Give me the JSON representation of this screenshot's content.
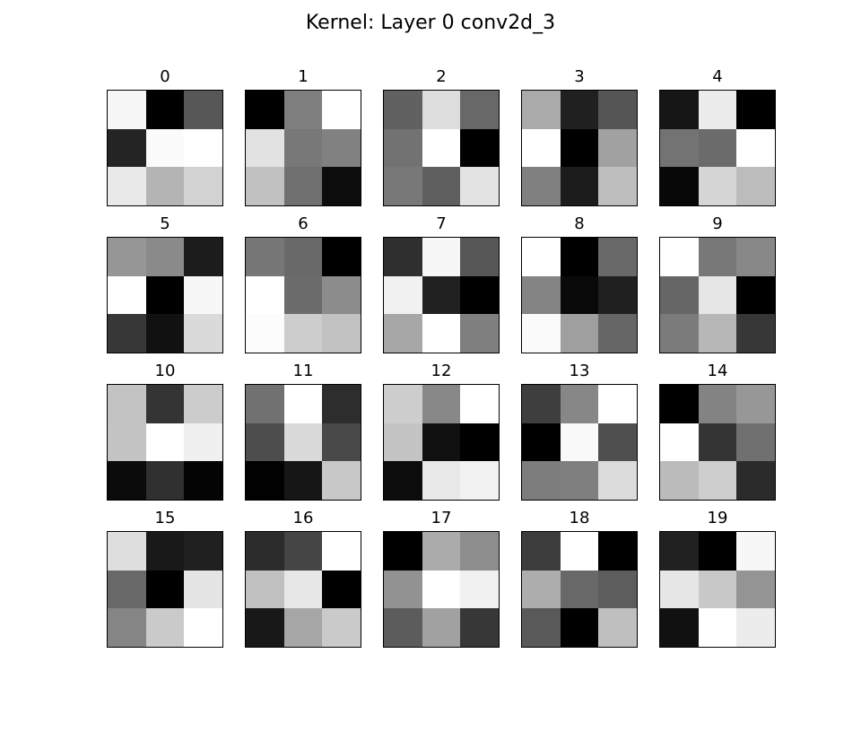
{
  "figure": {
    "title": "Kernel: Layer 0 conv2d_3"
  },
  "chart_data": {
    "type": "heatmap",
    "title": "Kernel: Layer 0 conv2d_3",
    "colormap": "gray",
    "value_range": [
      0,
      255
    ],
    "grid": false,
    "kernels": [
      {
        "label": "0",
        "values": [
          [
            246,
            0,
            87
          ],
          [
            36,
            251,
            255
          ],
          [
            233,
            180,
            210
          ]
        ]
      },
      {
        "label": "1",
        "values": [
          [
            0,
            127,
            255
          ],
          [
            226,
            120,
            129
          ],
          [
            193,
            112,
            13
          ]
        ]
      },
      {
        "label": "2",
        "values": [
          [
            97,
            221,
            104
          ],
          [
            114,
            255,
            0
          ],
          [
            120,
            95,
            227
          ]
        ]
      },
      {
        "label": "3",
        "values": [
          [
            170,
            32,
            85
          ],
          [
            255,
            0,
            161
          ],
          [
            128,
            28,
            190
          ]
        ]
      },
      {
        "label": "4",
        "values": [
          [
            22,
            236,
            0
          ],
          [
            115,
            107,
            255
          ],
          [
            8,
            214,
            188
          ]
        ]
      },
      {
        "label": "5",
        "values": [
          [
            150,
            138,
            28
          ],
          [
            255,
            0,
            247
          ],
          [
            55,
            17,
            218
          ]
        ]
      },
      {
        "label": "6",
        "values": [
          [
            119,
            105,
            0
          ],
          [
            255,
            108,
            140
          ],
          [
            252,
            205,
            194
          ]
        ]
      },
      {
        "label": "7",
        "values": [
          [
            47,
            247,
            87
          ],
          [
            241,
            33,
            0
          ],
          [
            167,
            255,
            127
          ]
        ]
      },
      {
        "label": "8",
        "values": [
          [
            255,
            0,
            105
          ],
          [
            132,
            9,
            32
          ],
          [
            251,
            159,
            102
          ]
        ]
      },
      {
        "label": "9",
        "values": [
          [
            255,
            120,
            136
          ],
          [
            102,
            230,
            0
          ],
          [
            123,
            183,
            55
          ]
        ]
      },
      {
        "label": "10",
        "values": [
          [
            195,
            52,
            204
          ],
          [
            196,
            255,
            240
          ],
          [
            11,
            48,
            4
          ]
        ]
      },
      {
        "label": "11",
        "values": [
          [
            113,
            255,
            45
          ],
          [
            77,
            218,
            73
          ],
          [
            1,
            22,
            200
          ]
        ]
      },
      {
        "label": "12",
        "values": [
          [
            205,
            136,
            255
          ],
          [
            196,
            16,
            0
          ],
          [
            12,
            233,
            242
          ]
        ]
      },
      {
        "label": "13",
        "values": [
          [
            62,
            135,
            255
          ],
          [
            0,
            249,
            79
          ],
          [
            125,
            127,
            220
          ]
        ]
      },
      {
        "label": "14",
        "values": [
          [
            0,
            131,
            151
          ],
          [
            255,
            52,
            112
          ],
          [
            187,
            206,
            43
          ]
        ]
      },
      {
        "label": "15",
        "values": [
          [
            222,
            25,
            32
          ],
          [
            104,
            0,
            228
          ],
          [
            133,
            202,
            255
          ]
        ]
      },
      {
        "label": "16",
        "values": [
          [
            44,
            69,
            255
          ],
          [
            192,
            231,
            0
          ],
          [
            24,
            166,
            202
          ]
        ]
      },
      {
        "label": "17",
        "values": [
          [
            0,
            171,
            142
          ],
          [
            146,
            255,
            241
          ],
          [
            92,
            161,
            55
          ]
        ]
      },
      {
        "label": "18",
        "values": [
          [
            60,
            255,
            0
          ],
          [
            174,
            104,
            93
          ],
          [
            89,
            0,
            191
          ]
        ]
      },
      {
        "label": "19",
        "values": [
          [
            33,
            0,
            247
          ],
          [
            230,
            200,
            148
          ],
          [
            17,
            255,
            236
          ]
        ]
      }
    ]
  }
}
